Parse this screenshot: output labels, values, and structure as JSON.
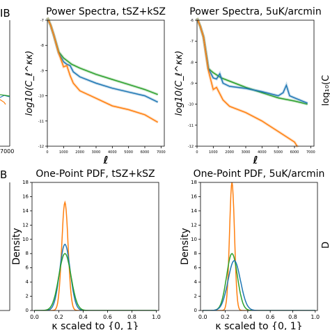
{
  "chart_data": [
    {
      "type": "line",
      "title": "Power Spectra, tSZ+kSZ",
      "xlabel": "ℓ",
      "ylabel": "log10(C_ℓ^κκ)",
      "xlim": [
        0,
        7200
      ],
      "ylim": [
        -12,
        -7
      ],
      "xticks": [
        0,
        1000,
        2000,
        3000,
        4000,
        5000,
        6000,
        7000
      ],
      "yticks": [
        -12,
        -11,
        -10,
        -9,
        -8,
        -7
      ],
      "grid": false,
      "series": [
        {
          "color": "#2ca02c",
          "x": [
            0,
            200,
            400,
            700,
            1000,
            1500,
            2000,
            3000,
            4000,
            5000,
            6000,
            6800
          ],
          "y": [
            -6.9,
            -7.2,
            -7.6,
            -8.25,
            -8.5,
            -8.75,
            -8.9,
            -9.15,
            -9.35,
            -9.55,
            -9.75,
            -9.95
          ]
        },
        {
          "color": "#1f77b4",
          "x": [
            0,
            200,
            400,
            700,
            1000,
            1200,
            1400,
            1600,
            2000,
            3000,
            4000,
            5000,
            6000,
            6800
          ],
          "y": [
            -6.9,
            -7.2,
            -7.6,
            -8.3,
            -8.65,
            -8.75,
            -8.8,
            -9.05,
            -9.25,
            -9.5,
            -9.7,
            -9.85,
            -10.0,
            -10.25
          ]
        },
        {
          "color": "#ff7f0e",
          "x": [
            0,
            200,
            400,
            700,
            1000,
            1200,
            1400,
            1600,
            2000,
            3000,
            4000,
            5000,
            6000,
            6800
          ],
          "y": [
            -6.9,
            -7.2,
            -7.6,
            -8.3,
            -8.85,
            -8.8,
            -9.2,
            -9.5,
            -9.8,
            -10.1,
            -10.4,
            -10.55,
            -10.75,
            -11.05
          ]
        }
      ]
    },
    {
      "type": "line",
      "title": "Power Spectra, 5uK/arcmin",
      "xlabel": "ℓ",
      "ylabel": "log10(C_ℓ^κκ)",
      "xlim": [
        0,
        7200
      ],
      "ylim": [
        -12,
        -6
      ],
      "xticks": [
        0,
        1000,
        2000,
        3000,
        4000,
        5000,
        6000,
        7000
      ],
      "yticks": [
        -12,
        -11,
        -10,
        -9,
        -8,
        -7,
        -6
      ],
      "grid": false,
      "series": [
        {
          "color": "#2ca02c",
          "x": [
            0,
            200,
            400,
            700,
            1000,
            1500,
            2000,
            3000,
            4000,
            5000,
            6000,
            6800
          ],
          "y": [
            -5.9,
            -6.3,
            -6.8,
            -8.3,
            -8.5,
            -8.75,
            -8.9,
            -9.2,
            -9.45,
            -9.7,
            -9.85,
            -10.0
          ]
        },
        {
          "color": "#1f77b4",
          "x": [
            0,
            200,
            400,
            700,
            1000,
            1200,
            1400,
            1600,
            2000,
            3000,
            4000,
            5000,
            5300,
            5500,
            5700,
            6000,
            6800
          ],
          "y": [
            -5.9,
            -6.3,
            -6.8,
            -8.3,
            -8.75,
            -8.8,
            -8.55,
            -9.0,
            -9.15,
            -9.25,
            -9.4,
            -9.6,
            -9.45,
            -9.1,
            -9.6,
            -9.7,
            -9.95
          ]
        },
        {
          "color": "#ff7f0e",
          "x": [
            0,
            200,
            400,
            700,
            1000,
            1200,
            1400,
            1600,
            2000,
            3000,
            4000,
            5000,
            6000,
            6200
          ],
          "y": [
            -5.9,
            -6.3,
            -6.8,
            -8.4,
            -9.3,
            -9.2,
            -9.5,
            -9.8,
            -10.1,
            -10.4,
            -10.8,
            -11.3,
            -11.8,
            -12.05
          ]
        }
      ]
    },
    {
      "type": "line",
      "title": "One-Point PDF, tSZ+kSZ",
      "xlabel": "κ scaled to {0, 1}",
      "ylabel": "Density",
      "xlim": [
        -0.02,
        1.02
      ],
      "ylim": [
        0,
        18
      ],
      "xticks": [
        0.0,
        0.2,
        0.4,
        0.6,
        0.8,
        1.0
      ],
      "yticks": [
        0,
        2,
        4,
        6,
        8,
        10,
        12,
        14,
        16,
        18
      ],
      "grid": false,
      "series": [
        {
          "color": "#ff7f0e",
          "mean": 0.25,
          "sigma": 0.026,
          "peak": 15.2
        },
        {
          "color": "#1f77b4",
          "mean": 0.25,
          "sigma": 0.043,
          "peak": 9.3
        },
        {
          "color": "#2ca02c",
          "mean": 0.25,
          "sigma": 0.05,
          "peak": 8.0
        }
      ]
    },
    {
      "type": "line",
      "title": "One-Point PDF, 5uK/arcmin",
      "xlabel": "κ scaled to {0, 1}",
      "ylabel": "Density",
      "xlim": [
        -0.02,
        1.02
      ],
      "ylim": [
        0,
        18
      ],
      "xticks": [
        0.0,
        0.2,
        0.4,
        0.6,
        0.8,
        1.0
      ],
      "yticks": [
        0,
        2,
        4,
        6,
        8,
        10,
        12,
        14,
        16,
        18
      ],
      "grid": false,
      "series": [
        {
          "color": "#ff7f0e",
          "mean": 0.26,
          "sigma": 0.022,
          "peak": 18.0
        },
        {
          "color": "#2ca02c",
          "mean": 0.26,
          "sigma": 0.048,
          "peak": 8.0
        },
        {
          "color": "#1f77b4",
          "mean": 0.28,
          "sigma": 0.055,
          "peak": 7.0
        }
      ]
    }
  ],
  "partial_edges": {
    "left_top_title_fragment": "IB",
    "left_bottom_title_fragment": "B",
    "left_tick_fragment": "7000"
  }
}
